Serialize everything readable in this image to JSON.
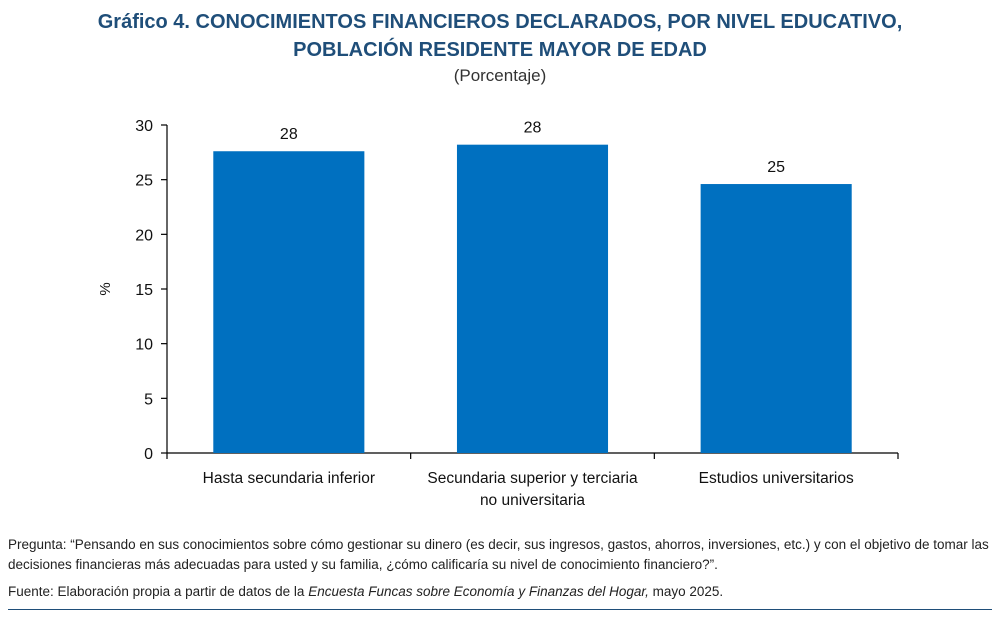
{
  "title_line1": "Gráfico 4. CONOCIMIENTOS FINANCIEROS DECLARADOS, POR NIVEL EDUCATIVO,",
  "title_line2": "POBLACIÓN RESIDENTE MAYOR DE EDAD",
  "subtitle": "(Porcentaje)",
  "question": "Pregunta: “Pensando en sus conocimientos sobre cómo gestionar su dinero (es decir, sus ingresos, gastos, ahorros, inversiones, etc.) y con el objetivo de tomar las decisiones financieras más adecuadas para usted y su familia, ¿cómo calificaría su nivel de conocimiento financiero?”.",
  "source": {
    "prefix": "Fuente: Elaboración propia a partir de datos de la ",
    "italic": "Encuesta Funcas sobre Economía y Finanzas del Hogar,",
    "suffix": " mayo 2025."
  },
  "colors": {
    "bar": "#0070c0",
    "title": "#1f4e79"
  },
  "chart_data": {
    "type": "bar",
    "categories": [
      [
        "Hasta secundaria inferior"
      ],
      [
        "Secundaria superior y terciaria",
        "no universitaria"
      ],
      [
        "Estudios universitarios"
      ]
    ],
    "values": [
      27.6,
      28.2,
      24.6
    ],
    "data_labels": [
      "28",
      "28",
      "25"
    ],
    "ylabel": "%",
    "ylim": [
      0,
      30
    ],
    "yticks": [
      0,
      5,
      10,
      15,
      20,
      25,
      30
    ]
  }
}
